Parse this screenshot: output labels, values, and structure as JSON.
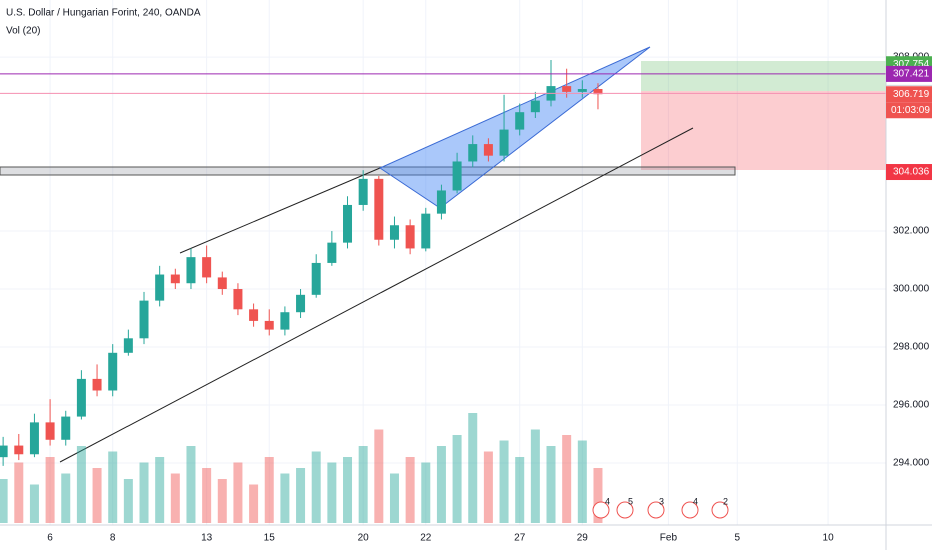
{
  "chart_data": {
    "type": "candlestick",
    "title": "U.S. Dollar / Hungarian Forint, 240, OANDA",
    "indicator": "Vol (20)",
    "x": [
      -0.5,
      0,
      0.5,
      1,
      1.5,
      2,
      2.5,
      3,
      3.5,
      4,
      4.5,
      5,
      5.5,
      6,
      6.5,
      7,
      7.5,
      8,
      8.5,
      9,
      9.5,
      10,
      10.5,
      11,
      11.5,
      12,
      12.5,
      13,
      13.5,
      14,
      14.5,
      15,
      15.5,
      16,
      16.5,
      17,
      17.5,
      18,
      18.5
    ],
    "open": [
      294.2,
      294.6,
      294.3,
      295.4,
      294.8,
      295.6,
      296.9,
      296.5,
      297.8,
      298.3,
      299.6,
      300.5,
      300.2,
      301.1,
      300.4,
      300.0,
      299.3,
      298.9,
      298.6,
      299.2,
      299.8,
      300.9,
      301.6,
      302.9,
      303.8,
      301.7,
      302.2,
      301.4,
      302.6,
      303.4,
      304.4,
      305.0,
      304.6,
      305.5,
      306.1,
      306.5,
      307.0,
      306.8,
      306.9
    ],
    "high": [
      294.9,
      295.0,
      295.7,
      296.2,
      295.8,
      297.2,
      297.4,
      298.1,
      298.6,
      299.9,
      300.8,
      300.7,
      301.4,
      301.5,
      300.6,
      300.2,
      299.5,
      299.3,
      299.4,
      300.0,
      301.2,
      302.0,
      303.2,
      304.1,
      303.9,
      302.5,
      302.4,
      302.8,
      303.6,
      304.7,
      305.3,
      305.2,
      306.7,
      306.4,
      306.8,
      307.9,
      307.6,
      307.2,
      307.1
    ],
    "low": [
      293.9,
      294.1,
      294.2,
      294.6,
      294.6,
      295.5,
      296.3,
      296.3,
      297.7,
      298.1,
      299.4,
      300.0,
      300.0,
      300.2,
      299.8,
      299.1,
      298.7,
      298.4,
      298.4,
      299.0,
      299.7,
      300.8,
      301.4,
      302.7,
      301.5,
      301.4,
      301.2,
      301.3,
      302.4,
      303.3,
      304.2,
      304.4,
      304.4,
      305.3,
      305.9,
      306.3,
      306.6,
      306.6,
      306.2
    ],
    "close": [
      294.6,
      294.3,
      295.4,
      294.8,
      295.6,
      296.9,
      296.5,
      297.8,
      298.3,
      299.6,
      300.5,
      300.2,
      301.1,
      300.4,
      300.0,
      299.3,
      298.9,
      298.6,
      299.2,
      299.8,
      300.9,
      301.6,
      302.9,
      303.8,
      301.7,
      302.2,
      301.4,
      302.6,
      303.4,
      304.4,
      305.0,
      304.6,
      305.5,
      306.1,
      306.5,
      307.0,
      306.8,
      306.9,
      306.72
    ],
    "volume": [
      40,
      55,
      35,
      60,
      45,
      70,
      50,
      65,
      40,
      55,
      60,
      45,
      70,
      50,
      40,
      55,
      35,
      60,
      45,
      50,
      65,
      55,
      60,
      70,
      85,
      45,
      60,
      55,
      70,
      80,
      100,
      65,
      75,
      60,
      85,
      70,
      80,
      75,
      50
    ],
    "up_color": "#26a69a",
    "down_color": "#ef5350",
    "xlim": [
      -0.6,
      27.7
    ],
    "xticks": [
      {
        "value": 1,
        "label": "6"
      },
      {
        "value": 3,
        "label": "8"
      },
      {
        "value": 6,
        "label": "13"
      },
      {
        "value": 8,
        "label": "15"
      },
      {
        "value": 11,
        "label": "20"
      },
      {
        "value": 13,
        "label": "22"
      },
      {
        "value": 16,
        "label": "27"
      },
      {
        "value": 18,
        "label": "29"
      },
      {
        "value": 20.75,
        "label": "Feb"
      },
      {
        "value": 22.95,
        "label": "5"
      },
      {
        "value": 25.85,
        "label": "10"
      }
    ],
    "ylim": [
      291.86,
      309.97
    ],
    "yticks": [
      {
        "value": 294,
        "label": "294.000"
      },
      {
        "value": 296,
        "label": "296.000"
      },
      {
        "value": 298,
        "label": "298.000"
      },
      {
        "value": 300,
        "label": "300.000"
      },
      {
        "value": 302,
        "label": "302.000"
      },
      {
        "value": 308,
        "label": "308.000"
      }
    ],
    "grid": true,
    "price_markers": [
      {
        "price": 307.754,
        "color": "#4caf50",
        "text_color": "#ffffff"
      },
      {
        "price": 307.421,
        "color": "#9c27b0",
        "text_color": "#ffffff",
        "line": true
      },
      {
        "price": 306.749,
        "color": "#ffffff",
        "text_color": "#131722",
        "line": true,
        "line_color": "#f48fb1"
      },
      {
        "price": 306.719,
        "color": "#ef5350",
        "text_color": "#ffffff"
      },
      {
        "price": 304.036,
        "color": "#f23645",
        "text_color": "#ffffff"
      }
    ],
    "countdown": "01:03:09",
    "events": [
      "4",
      "5",
      "3",
      "4",
      "2"
    ]
  }
}
